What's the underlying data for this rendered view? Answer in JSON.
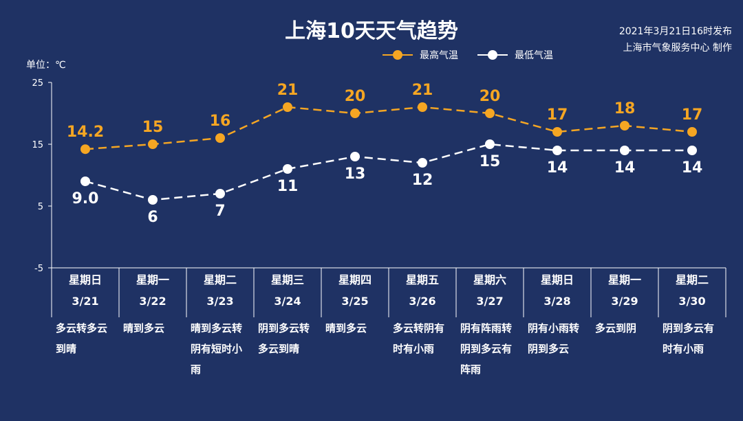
{
  "header": {
    "title": "上海10天天气趋势",
    "issue_time": "2021年3月21日16时发布",
    "issuer": "上海市气象服务中心 制作",
    "unit": "单位：℃"
  },
  "colors": {
    "background": "#1f3264",
    "high": "#f5a623",
    "low": "#ffffff"
  },
  "chart_data": {
    "type": "line",
    "title": "上海10天天气趋势",
    "ylabel": "单位：℃",
    "ylim": [
      -5,
      25
    ],
    "yticks": [
      "25",
      "15",
      "5",
      "-5"
    ],
    "grid": false,
    "legend_position": "top-right",
    "categories": [
      "3/21",
      "3/22",
      "3/23",
      "3/24",
      "3/25",
      "3/26",
      "3/27",
      "3/28",
      "3/29",
      "3/30"
    ],
    "series": [
      {
        "name": "最高气温",
        "values": [
          14.2,
          15,
          16,
          21,
          20,
          21,
          20,
          17,
          18,
          17
        ],
        "labels": [
          "14.2",
          "15",
          "16",
          "21",
          "20",
          "21",
          "20",
          "17",
          "18",
          "17"
        ],
        "color": "#f5a623"
      },
      {
        "name": "最低气温",
        "values": [
          9.0,
          6,
          7,
          11,
          13,
          12,
          15,
          14,
          14,
          14
        ],
        "labels": [
          "9.0",
          "6",
          "7",
          "11",
          "13",
          "12",
          "15",
          "14",
          "14",
          "14"
        ],
        "color": "#ffffff"
      }
    ]
  },
  "days": [
    {
      "weekday": "星期日",
      "date": "3/21",
      "weather": "多云转多云到晴"
    },
    {
      "weekday": "星期一",
      "date": "3/22",
      "weather": "晴到多云"
    },
    {
      "weekday": "星期二",
      "date": "3/23",
      "weather": "晴到多云转阴有短时小雨"
    },
    {
      "weekday": "星期三",
      "date": "3/24",
      "weather": "阴到多云转多云到晴"
    },
    {
      "weekday": "星期四",
      "date": "3/25",
      "weather": "晴到多云"
    },
    {
      "weekday": "星期五",
      "date": "3/26",
      "weather": "多云转阴有时有小雨"
    },
    {
      "weekday": "星期六",
      "date": "3/27",
      "weather": "阴有阵雨转阴到多云有阵雨"
    },
    {
      "weekday": "星期日",
      "date": "3/28",
      "weather": "阴有小雨转阴到多云"
    },
    {
      "weekday": "星期一",
      "date": "3/29",
      "weather": "多云到阴"
    },
    {
      "weekday": "星期二",
      "date": "3/30",
      "weather": "阴到多云有时有小雨"
    }
  ]
}
